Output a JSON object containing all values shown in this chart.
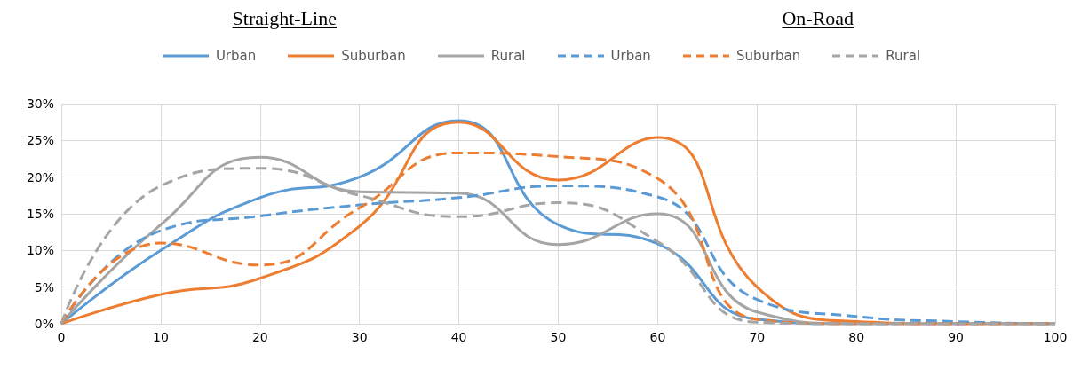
{
  "chart_data": {
    "type": "line",
    "annotations": [
      "Straight-Line",
      "On-Road"
    ],
    "x": [
      0,
      10,
      20,
      30,
      40,
      50,
      60,
      70,
      80,
      90,
      100
    ],
    "series": [
      {
        "name": "Urban",
        "color": "#5b9bd5",
        "line_style": "solid",
        "values": [
          0,
          10,
          17.2,
          20,
          27.7,
          13.5,
          10.9,
          0.6,
          0,
          0,
          0
        ]
      },
      {
        "name": "Suburban",
        "color": "#ed7d31",
        "line_style": "solid",
        "values": [
          0,
          4,
          6.2,
          13.3,
          27.5,
          19.6,
          25.4,
          5,
          0.3,
          0,
          0
        ]
      },
      {
        "name": "Rural",
        "color": "#a5a5a5",
        "line_style": "solid",
        "values": [
          0,
          13.5,
          22.7,
          18,
          17.8,
          10.8,
          15,
          1.6,
          0,
          0,
          0
        ]
      },
      {
        "name": "Urban",
        "color": "#5b9bd5",
        "line_style": "dashed",
        "values": [
          0,
          12.7,
          14.7,
          16.2,
          17.2,
          18.8,
          17.3,
          3.3,
          1,
          0.3,
          0
        ]
      },
      {
        "name": "Suburban",
        "color": "#ed7d31",
        "line_style": "dashed",
        "values": [
          0,
          11,
          8,
          15.8,
          23.3,
          22.8,
          19.8,
          0.6,
          0,
          0,
          0
        ]
      },
      {
        "name": "Rural",
        "color": "#a5a5a5",
        "line_style": "dashed",
        "values": [
          0,
          18.8,
          21.2,
          17.5,
          14.6,
          16.5,
          11.2,
          0.2,
          0,
          0,
          0
        ]
      }
    ],
    "xlim": [
      0,
      100
    ],
    "xticks": [
      0,
      10,
      20,
      30,
      40,
      50,
      60,
      70,
      80,
      90,
      100
    ],
    "ylim": [
      0,
      30
    ],
    "yticks": [
      {
        "value": 0,
        "label": "0%"
      },
      {
        "value": 5,
        "label": "5%"
      },
      {
        "value": 10,
        "label": "10%"
      },
      {
        "value": 15,
        "label": "15%"
      },
      {
        "value": 20,
        "label": "20%"
      },
      {
        "value": 25,
        "label": "25%"
      },
      {
        "value": 30,
        "label": "30%"
      }
    ],
    "grid": true,
    "legend": "top",
    "marker": "none"
  }
}
